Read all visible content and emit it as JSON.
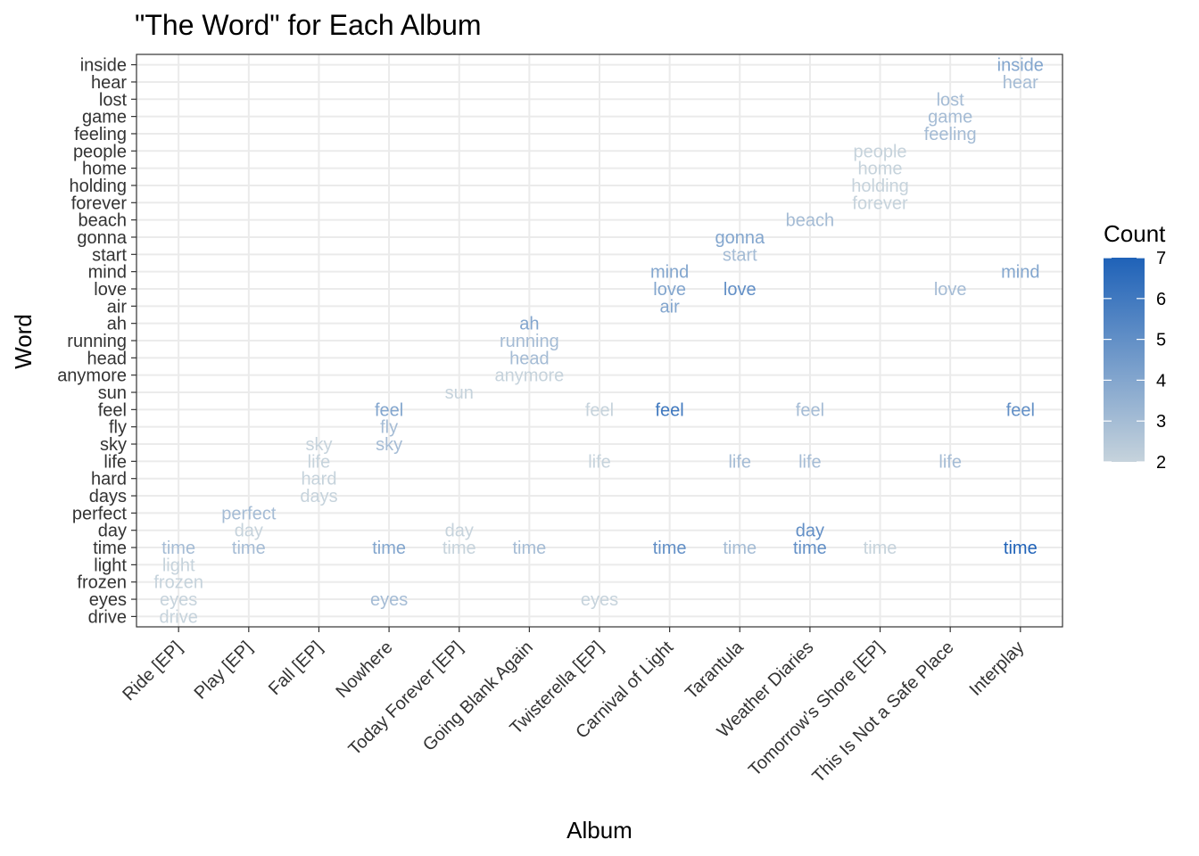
{
  "chart_data": {
    "type": "scatter",
    "title": "\"The Word\" for Each Album",
    "xlabel": "Album",
    "ylabel": "Word",
    "categories_x": [
      "Ride [EP]",
      "Play [EP]",
      "Fall [EP]",
      "Nowhere",
      "Today Forever [EP]",
      "Going Blank Again",
      "Twisterella [EP]",
      "Carnival of Light",
      "Tarantula",
      "Weather Diaries",
      "Tomorrow’s Shore [EP]",
      "This Is Not a Safe Place",
      "Interplay"
    ],
    "categories_y": [
      "drive",
      "eyes",
      "frozen",
      "light",
      "time",
      "day",
      "perfect",
      "days",
      "hard",
      "life",
      "sky",
      "fly",
      "feel",
      "sun",
      "anymore",
      "head",
      "running",
      "ah",
      "air",
      "love",
      "mind",
      "start",
      "gonna",
      "beach",
      "forever",
      "holding",
      "home",
      "people",
      "feeling",
      "game",
      "lost",
      "hear",
      "inside"
    ],
    "legend": {
      "title": "Count",
      "min": 2,
      "max": 7,
      "ticks": [
        2,
        3,
        4,
        5,
        6,
        7
      ],
      "low_color": "#c6d3dc",
      "high_color": "#1f62b8"
    },
    "grid": true,
    "points": [
      {
        "album": "Ride [EP]",
        "word": "time",
        "count": 3
      },
      {
        "album": "Ride [EP]",
        "word": "light",
        "count": 2
      },
      {
        "album": "Ride [EP]",
        "word": "frozen",
        "count": 2
      },
      {
        "album": "Ride [EP]",
        "word": "eyes",
        "count": 2
      },
      {
        "album": "Ride [EP]",
        "word": "drive",
        "count": 2
      },
      {
        "album": "Play [EP]",
        "word": "perfect",
        "count": 3
      },
      {
        "album": "Play [EP]",
        "word": "day",
        "count": 2
      },
      {
        "album": "Play [EP]",
        "word": "time",
        "count": 3
      },
      {
        "album": "Fall [EP]",
        "word": "sky",
        "count": 2
      },
      {
        "album": "Fall [EP]",
        "word": "life",
        "count": 2
      },
      {
        "album": "Fall [EP]",
        "word": "hard",
        "count": 2
      },
      {
        "album": "Fall [EP]",
        "word": "days",
        "count": 2
      },
      {
        "album": "Nowhere",
        "word": "feel",
        "count": 4
      },
      {
        "album": "Nowhere",
        "word": "fly",
        "count": 3
      },
      {
        "album": "Nowhere",
        "word": "sky",
        "count": 3
      },
      {
        "album": "Nowhere",
        "word": "time",
        "count": 4
      },
      {
        "album": "Nowhere",
        "word": "eyes",
        "count": 3
      },
      {
        "album": "Today Forever [EP]",
        "word": "sun",
        "count": 2
      },
      {
        "album": "Today Forever [EP]",
        "word": "day",
        "count": 2
      },
      {
        "album": "Today Forever [EP]",
        "word": "time",
        "count": 2
      },
      {
        "album": "Going Blank Again",
        "word": "ah",
        "count": 4
      },
      {
        "album": "Going Blank Again",
        "word": "running",
        "count": 3
      },
      {
        "album": "Going Blank Again",
        "word": "head",
        "count": 3
      },
      {
        "album": "Going Blank Again",
        "word": "anymore",
        "count": 2
      },
      {
        "album": "Going Blank Again",
        "word": "time",
        "count": 3
      },
      {
        "album": "Twisterella [EP]",
        "word": "feel",
        "count": 2
      },
      {
        "album": "Twisterella [EP]",
        "word": "life",
        "count": 2
      },
      {
        "album": "Twisterella [EP]",
        "word": "eyes",
        "count": 2
      },
      {
        "album": "Carnival of Light",
        "word": "mind",
        "count": 4
      },
      {
        "album": "Carnival of Light",
        "word": "love",
        "count": 4
      },
      {
        "album": "Carnival of Light",
        "word": "air",
        "count": 4
      },
      {
        "album": "Carnival of Light",
        "word": "feel",
        "count": 6
      },
      {
        "album": "Carnival of Light",
        "word": "time",
        "count": 5
      },
      {
        "album": "Tarantula",
        "word": "gonna",
        "count": 4
      },
      {
        "album": "Tarantula",
        "word": "start",
        "count": 3
      },
      {
        "album": "Tarantula",
        "word": "love",
        "count": 5
      },
      {
        "album": "Tarantula",
        "word": "life",
        "count": 3
      },
      {
        "album": "Tarantula",
        "word": "time",
        "count": 3
      },
      {
        "album": "Weather Diaries",
        "word": "beach",
        "count": 3
      },
      {
        "album": "Weather Diaries",
        "word": "feel",
        "count": 3
      },
      {
        "album": "Weather Diaries",
        "word": "life",
        "count": 3
      },
      {
        "album": "Weather Diaries",
        "word": "day",
        "count": 5
      },
      {
        "album": "Weather Diaries",
        "word": "time",
        "count": 5
      },
      {
        "album": "Tomorrow’s Shore [EP]",
        "word": "people",
        "count": 2
      },
      {
        "album": "Tomorrow’s Shore [EP]",
        "word": "home",
        "count": 2
      },
      {
        "album": "Tomorrow’s Shore [EP]",
        "word": "holding",
        "count": 2
      },
      {
        "album": "Tomorrow’s Shore [EP]",
        "word": "forever",
        "count": 2
      },
      {
        "album": "Tomorrow’s Shore [EP]",
        "word": "time",
        "count": 2
      },
      {
        "album": "This Is Not a Safe Place",
        "word": "lost",
        "count": 3
      },
      {
        "album": "This Is Not a Safe Place",
        "word": "game",
        "count": 3
      },
      {
        "album": "This Is Not a Safe Place",
        "word": "feeling",
        "count": 3
      },
      {
        "album": "This Is Not a Safe Place",
        "word": "love",
        "count": 3
      },
      {
        "album": "This Is Not a Safe Place",
        "word": "life",
        "count": 3
      },
      {
        "album": "Interplay",
        "word": "inside",
        "count": 4
      },
      {
        "album": "Interplay",
        "word": "hear",
        "count": 3
      },
      {
        "album": "Interplay",
        "word": "mind",
        "count": 4
      },
      {
        "album": "Interplay",
        "word": "feel",
        "count": 5
      },
      {
        "album": "Interplay",
        "word": "time",
        "count": 7
      }
    ]
  }
}
